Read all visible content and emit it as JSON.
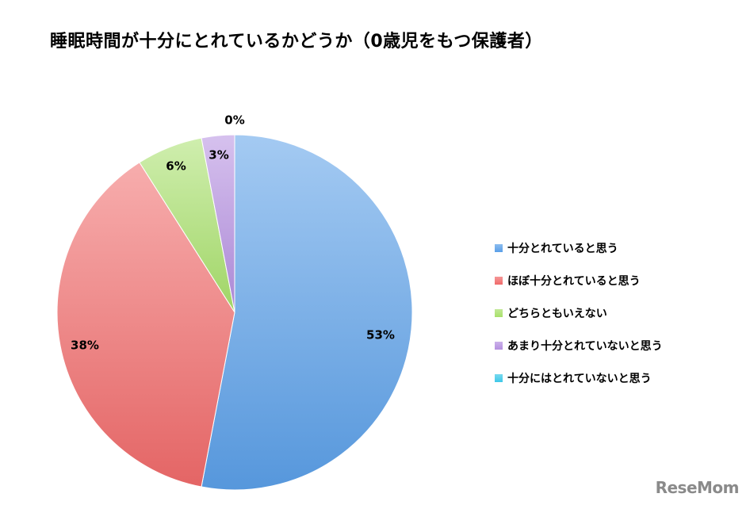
{
  "chart_data": {
    "type": "pie",
    "title": "睡眠時間が十分にとれているかどうか（0歳児をもつ保護者）",
    "categories": [
      "十分とれていると思う",
      "ほぼ十分とれていると思う",
      "どちらともいえない",
      "あまり十分とれていないと思う",
      "十分にはとれていないと思う"
    ],
    "values": [
      53,
      38,
      6,
      3,
      0
    ],
    "labels": [
      "53%",
      "38%",
      "6%",
      "3%",
      "0%"
    ],
    "colors": [
      "#5a9fe8",
      "#f06a6a",
      "#a8e06b",
      "#b48fe0",
      "#3ec8e8"
    ],
    "legend_position": "right"
  },
  "logo_text": "ReseMom"
}
